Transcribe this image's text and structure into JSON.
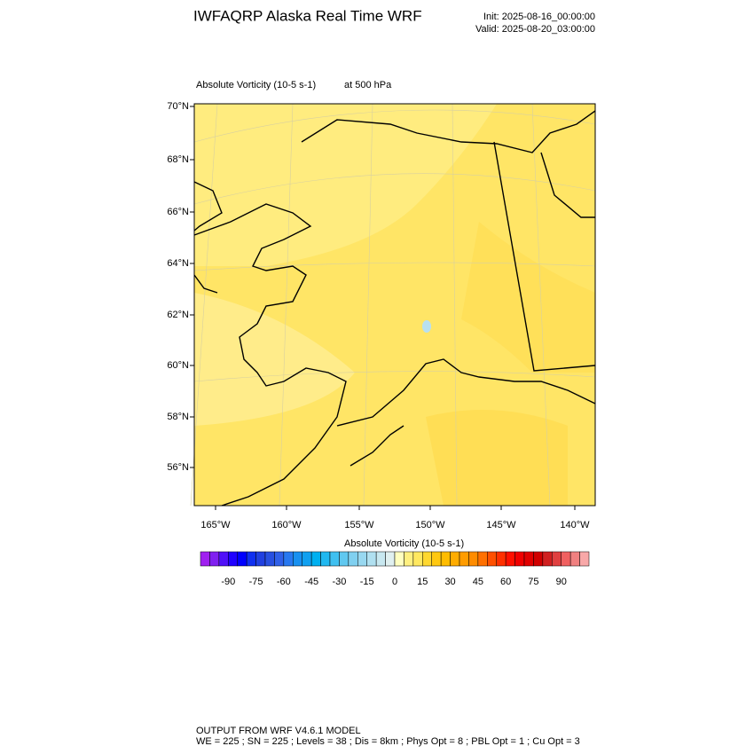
{
  "header": {
    "title": "IWFAQRP Alaska Real Time WRF",
    "init": "Init: 2025-08-16_00:00:00",
    "valid": "Valid: 2025-08-20_03:00:00"
  },
  "field": {
    "name": "Absolute Vorticity   (10-5 s-1)",
    "level": "at   500 hPa"
  },
  "map": {
    "lat_labels": [
      "70°N",
      "68°N",
      "66°N",
      "64°N",
      "62°N",
      "60°N",
      "58°N",
      "56°N"
    ],
    "lon_labels": [
      "165°W",
      "160°W",
      "155°W",
      "150°W",
      "145°W",
      "140°W"
    ]
  },
  "colorbar": {
    "title": "Absolute Vorticity  (10-5 s-1)",
    "colors": [
      "#a020f0",
      "#8020f0",
      "#5010f8",
      "#2000ff",
      "#0000ff",
      "#1030f0",
      "#2040e0",
      "#2850e0",
      "#3060e8",
      "#2878f0",
      "#1890f0",
      "#10a0f0",
      "#00b0f0",
      "#20b8f0",
      "#40c0f0",
      "#60c8f0",
      "#80d0f0",
      "#98d8f0",
      "#b0e0f0",
      "#c8e8f0",
      "#e0f0f0",
      "#ffffc0",
      "#fff080",
      "#ffe860",
      "#ffd830",
      "#ffc810",
      "#ffbc00",
      "#ffac00",
      "#ff9c00",
      "#ff8c00",
      "#ff7000",
      "#ff5000",
      "#ff3000",
      "#ff1000",
      "#f00000",
      "#e00000",
      "#d00000",
      "#d02020",
      "#e04040",
      "#f06060",
      "#f08080",
      "#f8a8a8"
    ],
    "labels": [
      -90,
      -75,
      -60,
      -45,
      -30,
      -15,
      0,
      15,
      30,
      45,
      60,
      75,
      90
    ]
  },
  "footer": {
    "line1": "OUTPUT FROM WRF V4.6.1 MODEL",
    "line2": "WE = 225 ; SN = 225 ; Levels = 38 ; Dis = 8km ; Phys Opt = 8 ; PBL Opt = 1 ; Cu Opt = 3"
  }
}
